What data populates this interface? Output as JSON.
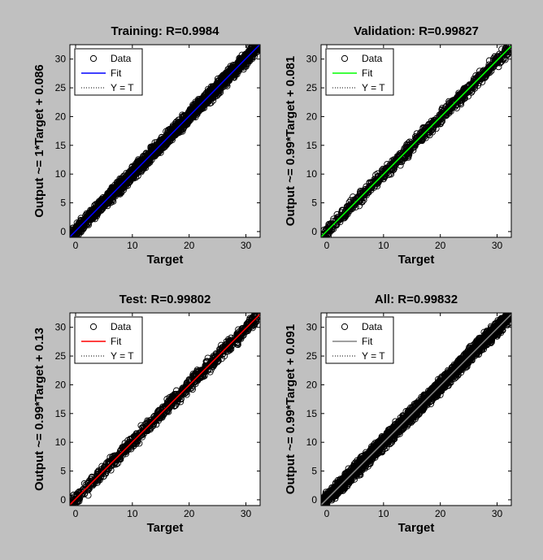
{
  "chart_data": [
    {
      "type": "scatter",
      "title": "Training: R=0.9984",
      "xlabel": "Target",
      "ylabel": "Output ~= 1*Target + 0.086",
      "xlim": [
        -1,
        32.5
      ],
      "ylim": [
        -1,
        32.5
      ],
      "xticks": [
        0,
        10,
        20,
        30
      ],
      "yticks": [
        0,
        5,
        10,
        15,
        20,
        25,
        30
      ],
      "grid": false,
      "legend_position": "top-left",
      "fit": {
        "slope": 1.0,
        "intercept": 0.086
      },
      "fit_color": "#0000ff",
      "density": "dense",
      "spread": 0.55,
      "series": [
        {
          "name": "Data",
          "marker": "open-circle",
          "color": "#000000"
        },
        {
          "name": "Fit",
          "line": "solid",
          "color": "#0000ff"
        },
        {
          "name": "Y = T",
          "line": "dotted",
          "color": "#000000"
        }
      ]
    },
    {
      "type": "scatter",
      "title": "Validation: R=0.99827",
      "xlabel": "Target",
      "ylabel": "Output ~= 0.99*Target + 0.081",
      "xlim": [
        -1,
        32.5
      ],
      "ylim": [
        -1,
        32.5
      ],
      "xticks": [
        0,
        10,
        20,
        30
      ],
      "yticks": [
        0,
        5,
        10,
        15,
        20,
        25,
        30
      ],
      "grid": false,
      "legend_position": "top-left",
      "fit": {
        "slope": 0.99,
        "intercept": 0.081
      },
      "fit_color": "#00ff00",
      "density": "medium",
      "spread": 0.5,
      "series": [
        {
          "name": "Data",
          "marker": "open-circle",
          "color": "#000000"
        },
        {
          "name": "Fit",
          "line": "solid",
          "color": "#00ff00"
        },
        {
          "name": "Y = T",
          "line": "dotted",
          "color": "#000000"
        }
      ]
    },
    {
      "type": "scatter",
      "title": "Test: R=0.99802",
      "xlabel": "Target",
      "ylabel": "Output ~= 0.99*Target + 0.13",
      "xlim": [
        -1,
        32.5
      ],
      "ylim": [
        -1,
        32.5
      ],
      "xticks": [
        0,
        10,
        20,
        30
      ],
      "yticks": [
        0,
        5,
        10,
        15,
        20,
        25,
        30
      ],
      "grid": false,
      "legend_position": "top-left",
      "fit": {
        "slope": 0.99,
        "intercept": 0.13
      },
      "fit_color": "#ff0000",
      "density": "medium",
      "spread": 0.55,
      "series": [
        {
          "name": "Data",
          "marker": "open-circle",
          "color": "#000000"
        },
        {
          "name": "Fit",
          "line": "solid",
          "color": "#ff0000"
        },
        {
          "name": "Y = T",
          "line": "dotted",
          "color": "#000000"
        }
      ]
    },
    {
      "type": "scatter",
      "title": "All: R=0.99832",
      "xlabel": "Target",
      "ylabel": "Output ~= 0.99*Target + 0.091",
      "xlim": [
        -1,
        32.5
      ],
      "ylim": [
        -1,
        32.5
      ],
      "xticks": [
        0,
        10,
        20,
        30
      ],
      "yticks": [
        0,
        5,
        10,
        15,
        20,
        25,
        30
      ],
      "grid": false,
      "legend_position": "top-left",
      "fit": {
        "slope": 0.99,
        "intercept": 0.091
      },
      "fit_color": "#808080",
      "density": "dense",
      "spread": 0.6,
      "series": [
        {
          "name": "Data",
          "marker": "open-circle",
          "color": "#000000"
        },
        {
          "name": "Fit",
          "line": "solid",
          "color": "#808080"
        },
        {
          "name": "Y = T",
          "line": "dotted",
          "color": "#000000"
        }
      ]
    }
  ]
}
